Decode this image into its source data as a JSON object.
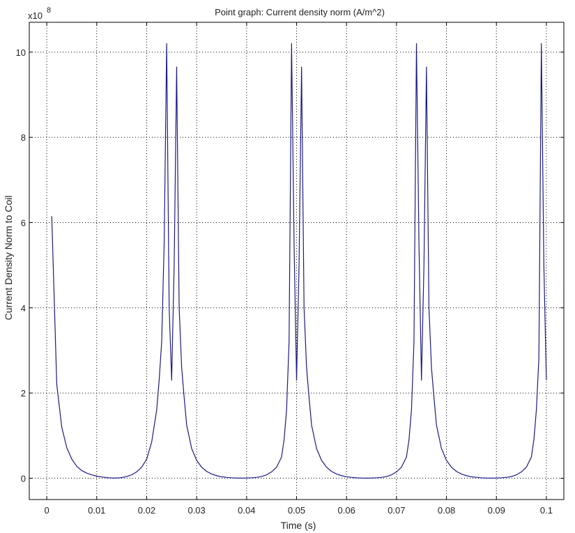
{
  "chart_data": {
    "type": "line",
    "title": "Point graph: Current density norm (A/m^2)",
    "xlabel": "Time (s)",
    "ylabel": "Current Density Norm to Coil",
    "y_exponent_label": {
      "base": "x10",
      "exp": "8"
    },
    "xlim": [
      -0.0035,
      0.1035
    ],
    "ylim": [
      -0.5,
      10.7
    ],
    "x_ticks": [
      0,
      0.01,
      0.02,
      0.03,
      0.04,
      0.05,
      0.06,
      0.07,
      0.08,
      0.09,
      0.1
    ],
    "x_tick_labels": [
      "0",
      "0.01",
      "0.02",
      "0.03",
      "0.04",
      "0.05",
      "0.06",
      "0.07",
      "0.08",
      "0.09",
      "0.1"
    ],
    "y_ticks": [
      0,
      2,
      4,
      6,
      8,
      10
    ],
    "y_tick_labels": [
      "0",
      "2",
      "4",
      "6",
      "8",
      "10"
    ],
    "grid": true,
    "line_color": "#1a1a8c",
    "series": [
      {
        "x": [
          0.001,
          0.002,
          0.003,
          0.004,
          0.005,
          0.006,
          0.007,
          0.008,
          0.009,
          0.01,
          0.011,
          0.012,
          0.0125,
          0.0135,
          0.0145,
          0.015,
          0.016,
          0.017,
          0.018,
          0.019,
          0.02,
          0.021,
          0.022,
          0.0225,
          0.023,
          0.0235,
          0.024,
          0.0245,
          0.025,
          0.0255,
          0.026,
          0.0265,
          0.027,
          0.0275,
          0.028,
          0.029,
          0.03,
          0.031,
          0.032,
          0.033,
          0.034,
          0.035,
          0.036,
          0.037,
          0.038,
          0.039,
          0.04,
          0.041,
          0.042,
          0.043,
          0.044,
          0.045,
          0.046,
          0.047,
          0.0475,
          0.048,
          0.0485,
          0.049,
          0.0495,
          0.05,
          0.0505,
          0.051,
          0.0515,
          0.052,
          0.0525,
          0.053,
          0.054,
          0.055,
          0.056,
          0.057,
          0.058,
          0.059,
          0.06,
          0.061,
          0.062,
          0.063,
          0.064,
          0.065,
          0.066,
          0.067,
          0.068,
          0.069,
          0.07,
          0.071,
          0.072,
          0.0725,
          0.073,
          0.0735,
          0.074,
          0.0745,
          0.075,
          0.0755,
          0.076,
          0.0765,
          0.077,
          0.0775,
          0.078,
          0.079,
          0.08,
          0.081,
          0.082,
          0.083,
          0.084,
          0.085,
          0.086,
          0.087,
          0.088,
          0.089,
          0.09,
          0.091,
          0.092,
          0.093,
          0.094,
          0.095,
          0.096,
          0.097,
          0.0975,
          0.098,
          0.0985,
          0.099,
          0.0995,
          0.1
        ],
        "y": [
          6.15,
          2.2,
          1.2,
          0.72,
          0.45,
          0.28,
          0.18,
          0.12,
          0.08,
          0.05,
          0.03,
          0.015,
          0.01,
          0.005,
          0.01,
          0.015,
          0.04,
          0.08,
          0.15,
          0.26,
          0.45,
          0.85,
          1.6,
          2.3,
          3.2,
          5.5,
          10.2,
          4.0,
          2.3,
          5.0,
          9.65,
          4.0,
          2.6,
          1.9,
          1.25,
          0.7,
          0.42,
          0.26,
          0.16,
          0.1,
          0.06,
          0.035,
          0.02,
          0.01,
          0.005,
          0.003,
          0.005,
          0.01,
          0.02,
          0.04,
          0.08,
          0.15,
          0.26,
          0.5,
          0.9,
          1.6,
          3.2,
          10.2,
          5.5,
          2.3,
          5.0,
          9.65,
          4.0,
          2.6,
          1.9,
          1.25,
          0.7,
          0.42,
          0.26,
          0.16,
          0.1,
          0.06,
          0.035,
          0.02,
          0.01,
          0.005,
          0.003,
          0.005,
          0.01,
          0.02,
          0.04,
          0.08,
          0.15,
          0.26,
          0.5,
          0.9,
          1.6,
          3.2,
          10.2,
          5.5,
          2.3,
          5.0,
          9.65,
          4.0,
          2.6,
          1.9,
          1.25,
          0.7,
          0.42,
          0.26,
          0.16,
          0.1,
          0.06,
          0.035,
          0.02,
          0.01,
          0.005,
          0.003,
          0.005,
          0.01,
          0.02,
          0.04,
          0.08,
          0.15,
          0.26,
          0.5,
          0.9,
          1.6,
          2.8,
          10.2,
          5.0,
          2.3
        ]
      }
    ]
  }
}
